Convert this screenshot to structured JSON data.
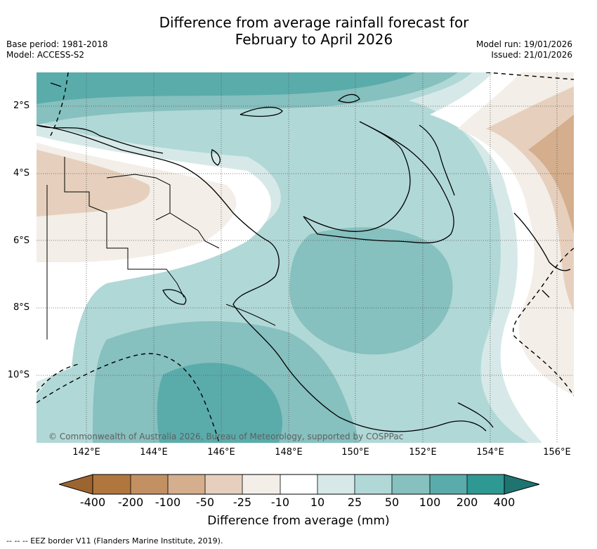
{
  "title_line1": "Difference from average rainfall forecast for",
  "title_line2": "February to April 2026",
  "base_period": "Base period: 1981-2018",
  "model": "Model: ACCESS-S2",
  "model_run": "Model run: 19/01/2026",
  "issued": "Issued: 21/01/2026",
  "lat_labels": [
    "2°S",
    "4°S",
    "6°S",
    "8°S",
    "10°S"
  ],
  "lon_labels": [
    "142°E",
    "144°E",
    "146°E",
    "148°E",
    "150°E",
    "152°E",
    "154°E",
    "156°E"
  ],
  "copyright": "© Commonwealth of Australia 2026, Bureau of Meteorology, supported by COSPPac",
  "colorbar": {
    "tick_labels": [
      "-400",
      "-200",
      "-100",
      "-50",
      "-25",
      "-10",
      "10",
      "25",
      "50",
      "100",
      "200",
      "400"
    ],
    "colors": [
      "#9c6530",
      "#b0763d",
      "#c29062",
      "#d4ae8d",
      "#e6d0bd",
      "#f3eee8",
      "#ffffff",
      "#d6e9e8",
      "#b0d8d7",
      "#86c0bf",
      "#5aacab",
      "#2e9893",
      "#1e7470"
    ],
    "title": "Difference from average (mm)"
  },
  "eez_note": "--  --  -- EEZ border V11 (Flanders Marine Institute, 2019)."
}
